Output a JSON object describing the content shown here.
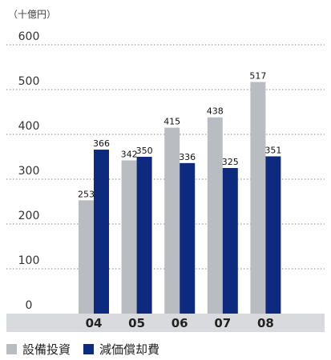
{
  "chart_data": {
    "type": "bar",
    "unit_label": "（十億円）",
    "categories": [
      "04",
      "05",
      "06",
      "07",
      "08"
    ],
    "series": [
      {
        "name": "設備投資",
        "color": "#b9bcc1",
        "values": [
          253,
          342,
          415,
          438,
          517
        ]
      },
      {
        "name": "減価償却費",
        "color": "#0d2a7f",
        "values": [
          366,
          350,
          336,
          325,
          351
        ]
      }
    ],
    "y_ticks": [
      0,
      100,
      200,
      300,
      400,
      500,
      600
    ],
    "ylim": [
      0,
      600
    ],
    "grid": "dotted-horizontal",
    "legend_position": "bottom-left",
    "axis_band_color": "#d9dade"
  }
}
